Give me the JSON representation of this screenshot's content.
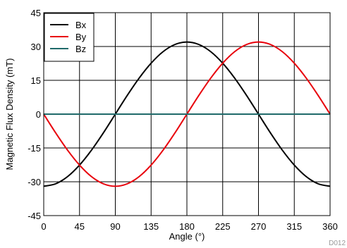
{
  "chart_data": {
    "type": "line",
    "xlabel": "Angle (°)",
    "ylabel": "Magnetic Flux Density (mT)",
    "xlim": [
      0,
      360
    ],
    "ylim": [
      -45,
      45
    ],
    "x_ticks": [
      "0",
      "45",
      "90",
      "135",
      "180",
      "225",
      "270",
      "315",
      "360"
    ],
    "y_ticks": [
      "45",
      "30",
      "15",
      "0",
      "-15",
      "-30",
      "-45"
    ],
    "grid": true,
    "legend_position": "top-left",
    "figure_id": "D012",
    "x": [
      0,
      15,
      30,
      45,
      60,
      75,
      90,
      105,
      120,
      135,
      150,
      165,
      180,
      195,
      210,
      225,
      240,
      255,
      270,
      285,
      300,
      315,
      330,
      345,
      360
    ],
    "series": [
      {
        "name": "Bx",
        "color": "#000000",
        "values": [
          -32,
          -30.9,
          -27.7,
          -22.6,
          -16,
          -8.3,
          0,
          8.3,
          16,
          22.6,
          27.7,
          30.9,
          32,
          30.9,
          27.7,
          22.6,
          16,
          8.3,
          0,
          -8.3,
          -16,
          -22.6,
          -27.7,
          -30.9,
          -32
        ]
      },
      {
        "name": "By",
        "color": "#e8000b",
        "values": [
          0,
          -8.3,
          -16,
          -22.6,
          -27.7,
          -30.9,
          -32,
          -30.9,
          -27.7,
          -22.6,
          -16,
          -8.3,
          0,
          8.3,
          16,
          22.6,
          27.7,
          30.9,
          32,
          30.9,
          27.7,
          22.6,
          16,
          8.3,
          0
        ]
      },
      {
        "name": "Bz",
        "color": "#1f6a6a",
        "values": [
          0,
          0,
          0,
          0,
          0,
          0,
          0,
          0,
          0,
          0,
          0,
          0,
          0,
          0,
          0,
          0,
          0,
          0,
          0,
          0,
          0,
          0,
          0,
          0,
          0
        ]
      }
    ]
  }
}
